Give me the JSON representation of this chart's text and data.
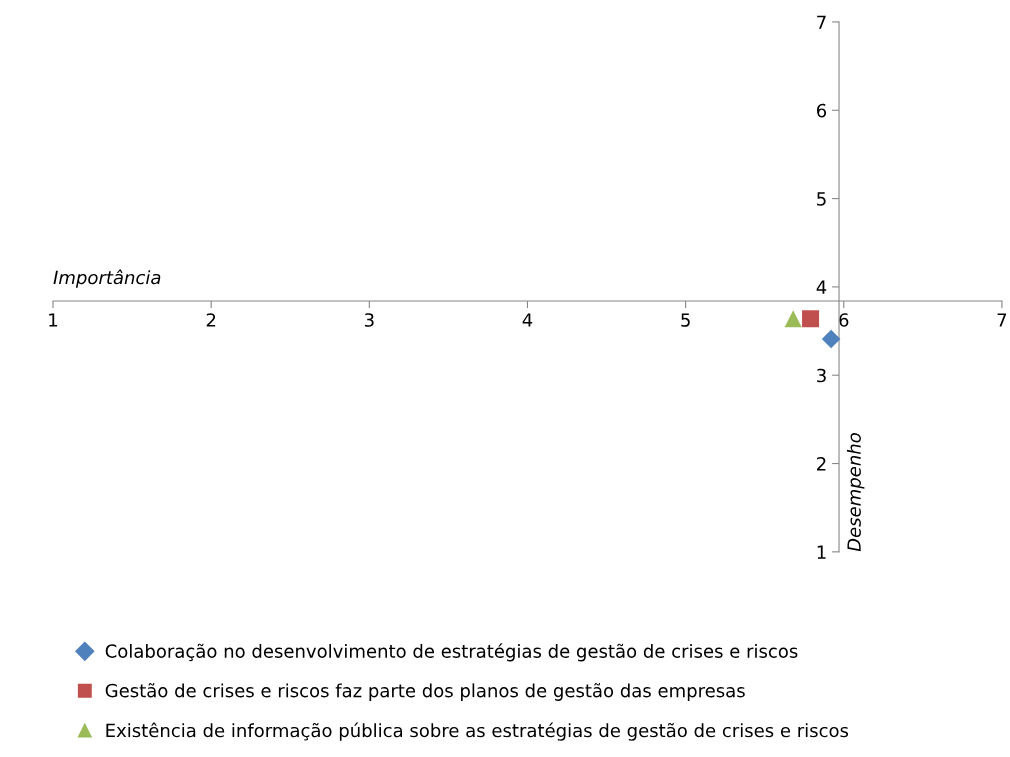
{
  "chart_data": {
    "type": "scatter",
    "xlabel": "Importância",
    "ylabel": "Desempenho",
    "xlim": [
      1,
      7
    ],
    "ylim": [
      1,
      7
    ],
    "xticks": [
      1,
      2,
      3,
      4,
      5,
      6,
      7
    ],
    "yticks": [
      1,
      2,
      3,
      4,
      5,
      6,
      7
    ],
    "grid": false,
    "legend": "bottom",
    "series": [
      {
        "name": "Colaboração no desenvolvimento de estratégias de gestão de crises e riscos",
        "color": "#4f81bd",
        "marker": "diamond",
        "x": [
          5.92
        ],
        "values": [
          3.41
        ]
      },
      {
        "name": "Gestão de crises e riscos faz parte dos planos de gestão das empresas",
        "color": "#c0504d",
        "marker": "square",
        "x": [
          5.79
        ],
        "values": [
          3.64
        ]
      },
      {
        "name": "Existência de informação pública sobre as estratégias de gestão de crises e riscos",
        "color": "#9bbb59",
        "marker": "triangle",
        "x": [
          5.68
        ],
        "values": [
          3.64
        ]
      }
    ]
  }
}
